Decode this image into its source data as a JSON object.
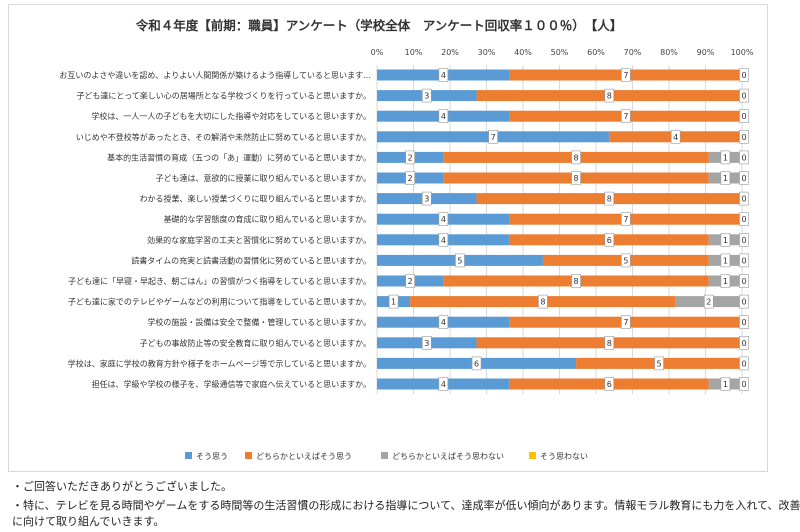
{
  "chart_data": {
    "type": "bar",
    "stacked": "percent",
    "orientation": "horizontal",
    "title": "令和４年度【前期：職員】アンケート（学校全体　アンケート回収率１００％）　【人】",
    "x_ticks": [
      "0%",
      "10%",
      "20%",
      "30%",
      "40%",
      "50%",
      "60%",
      "70%",
      "80%",
      "90%",
      "100%"
    ],
    "xlim": [
      0,
      100
    ],
    "grid": true,
    "legend_position": "bottom",
    "categories": [
      "お互いのよさや違いを認め、よりよい人間関係が築けるよう指導していると思います…",
      "子ども達にとって楽しい心の居場所となる学校づくりを行っていると思いますか。",
      "学校は、一人一人の子どもを大切にした指導や対応をしていると思いますか。",
      "いじめや不登校等があったとき、その解消や未然防止に努めていると思いますか。",
      "基本的生活習慣の育成（五つの「あ」運動）に努めていると思いますか。",
      "子ども達は、意欲的に授業に取り組んでいると思いますか。",
      "わかる授業、楽しい授業づくりに取り組んでいると思いますか。",
      "基礎的な学習態度の育成に取り組んでいると思いますか。",
      "効果的な家庭学習の工夫と習慣化に努めていると思いますか。",
      "読書タイムの充実と読書活動の習慣化に努めていると思いますか。",
      "子ども達に「早寝・早起き、朝ごはん」の習慣がつく指導をしていると思いますか。",
      "子ども達に家でのテレビやゲームなどの利用について指導をしていると思いますか。",
      "学校の施設・設備は安全で整備・管理していると思いますか。",
      "子どもの事故防止等の安全教育に取り組んでいると思いますか。",
      "学校は、家庭に学校の教育方針や様子をホームページ等で示していると思いますか。",
      "担任は、学級や学校の様子を、学級通信等で家庭へ伝えていると思いますか。"
    ],
    "series": [
      {
        "name": "そう思う",
        "color": "#5b9bd5",
        "values": [
          4,
          3,
          4,
          7,
          2,
          2,
          3,
          4,
          4,
          5,
          2,
          1,
          4,
          3,
          6,
          4
        ]
      },
      {
        "name": "どちらかといえばそう思う",
        "color": "#ed7d31",
        "values": [
          7,
          8,
          7,
          4,
          8,
          8,
          8,
          7,
          6,
          5,
          8,
          8,
          7,
          8,
          5,
          6
        ]
      },
      {
        "name": "どちらかといえばそう思わない",
        "color": "#a5a5a5",
        "values": [
          0,
          0,
          0,
          0,
          1,
          1,
          0,
          0,
          1,
          1,
          1,
          2,
          0,
          0,
          0,
          1
        ]
      },
      {
        "name": "そう思わない",
        "color": "#ffc000",
        "values": [
          0,
          0,
          0,
          0,
          0,
          0,
          0,
          0,
          0,
          0,
          0,
          0,
          0,
          0,
          0,
          0
        ]
      }
    ]
  },
  "notes": [
    "・ご回答いただきありがとうございました。",
    "・特に、テレビを見る時間やゲームをする時間等の生活習慣の形成における指導について、達成率が低い傾向があります。情報モラル教育にも力を入れて、改善",
    "に向けて取り組んでいきます。"
  ]
}
